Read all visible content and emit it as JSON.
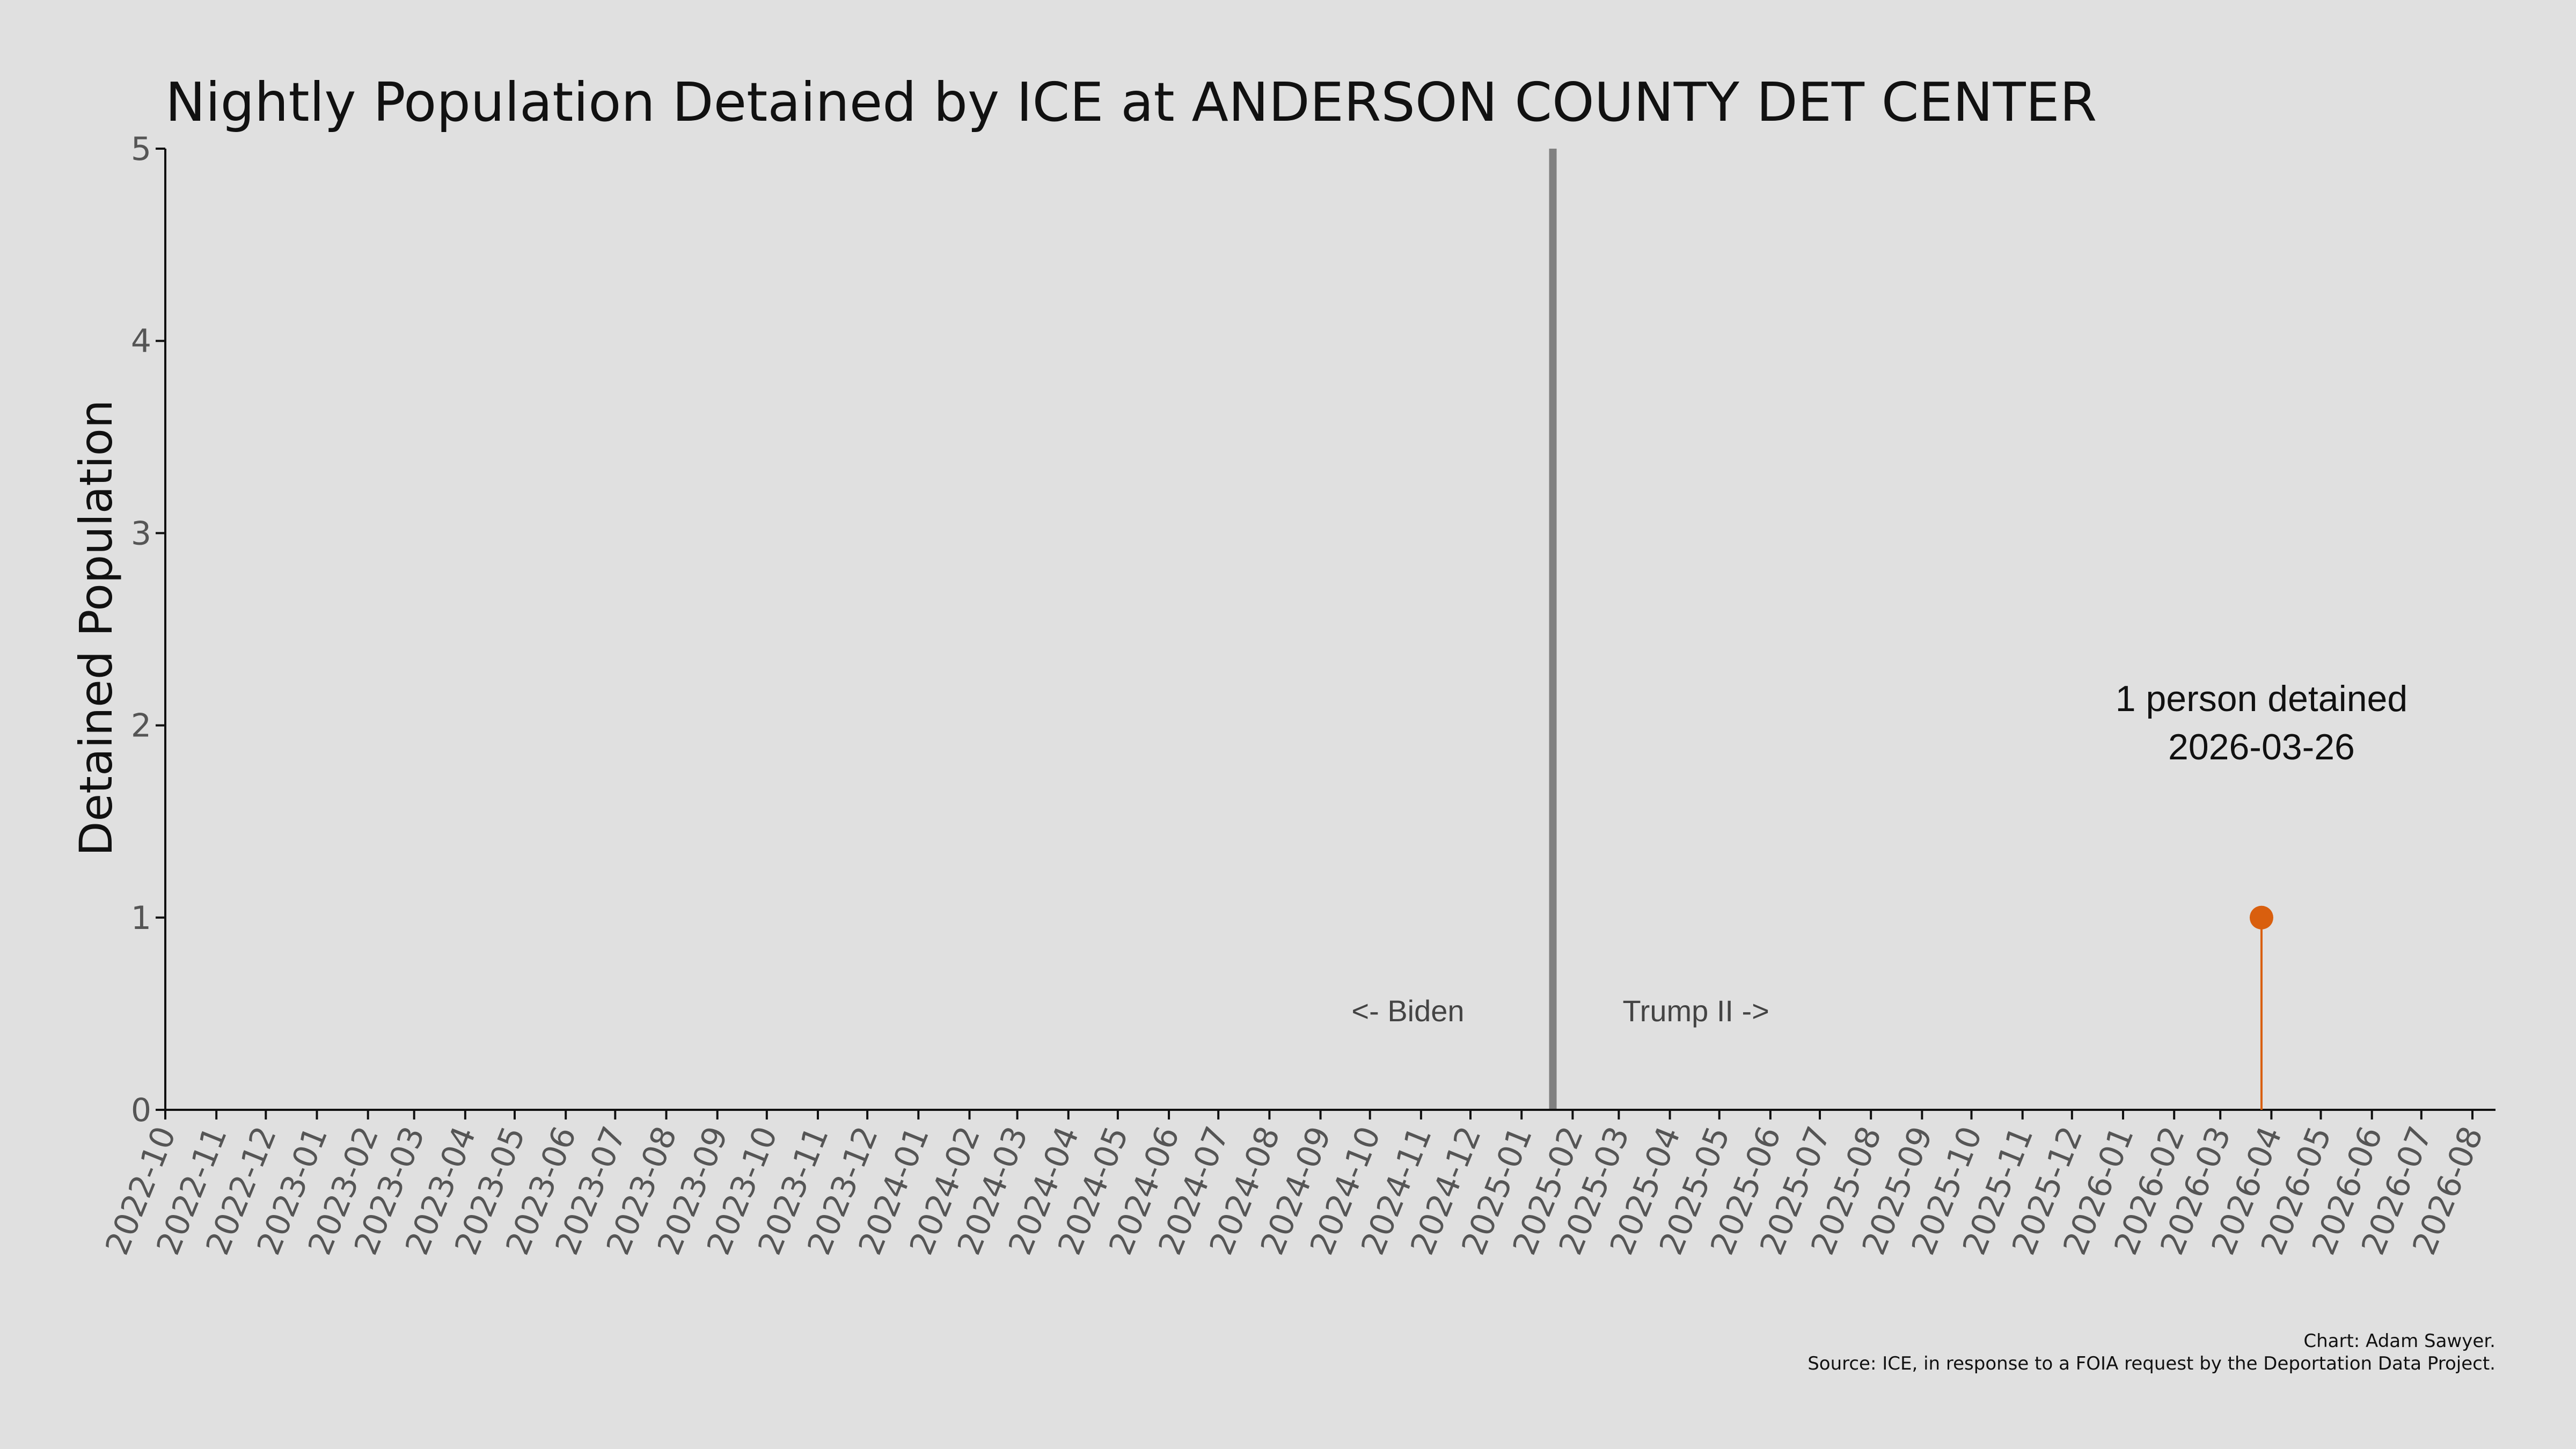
{
  "chart_data": {
    "type": "line",
    "title": "Nightly Population Detained by ICE at ANDERSON COUNTY DET CENTER",
    "ylabel": "Detained Population",
    "xlabel": "",
    "x_axis_type": "date",
    "xlim": [
      "2022-10-01",
      "2026-08-15"
    ],
    "ylim": [
      0,
      5
    ],
    "y_ticks": [
      0,
      1,
      2,
      3,
      4,
      5
    ],
    "x_tick_labels": [
      "2022-10",
      "2022-11",
      "2022-12",
      "2023-01",
      "2023-02",
      "2023-03",
      "2023-04",
      "2023-05",
      "2023-06",
      "2023-07",
      "2023-08",
      "2023-09",
      "2023-10",
      "2023-11",
      "2023-12",
      "2024-01",
      "2024-02",
      "2024-03",
      "2024-04",
      "2024-05",
      "2024-06",
      "2024-07",
      "2024-08",
      "2024-09",
      "2024-10",
      "2024-11",
      "2024-12",
      "2025-01",
      "2025-02",
      "2025-03",
      "2025-04",
      "2025-05",
      "2025-06",
      "2025-07",
      "2025-08",
      "2025-09",
      "2025-10",
      "2025-11",
      "2025-12",
      "2026-01",
      "2026-02",
      "2026-03",
      "2026-04",
      "2026-05",
      "2026-06",
      "2026-07",
      "2026-08"
    ],
    "grid": false,
    "legend": "none",
    "series": [
      {
        "points": [
          {
            "x": "2026-03-26",
            "y": 1
          }
        ],
        "color": "#d95f0e"
      }
    ],
    "vertical_line": {
      "x": "2025-01-20",
      "color": "#808080"
    },
    "era_labels": {
      "left": "<- Biden",
      "right": "Trump II ->"
    },
    "annotation": {
      "line1": "1 person detained",
      "line2": "2026-03-26"
    },
    "credits": {
      "line1": "Chart: Adam Sawyer.",
      "line2": "Source: ICE, in response to a FOIA request by the Deportation Data Project."
    },
    "colors": {
      "background": "#e0e0e0",
      "axis": "#111111",
      "tick_label": "#555555",
      "data_point": "#d95f0e"
    }
  }
}
